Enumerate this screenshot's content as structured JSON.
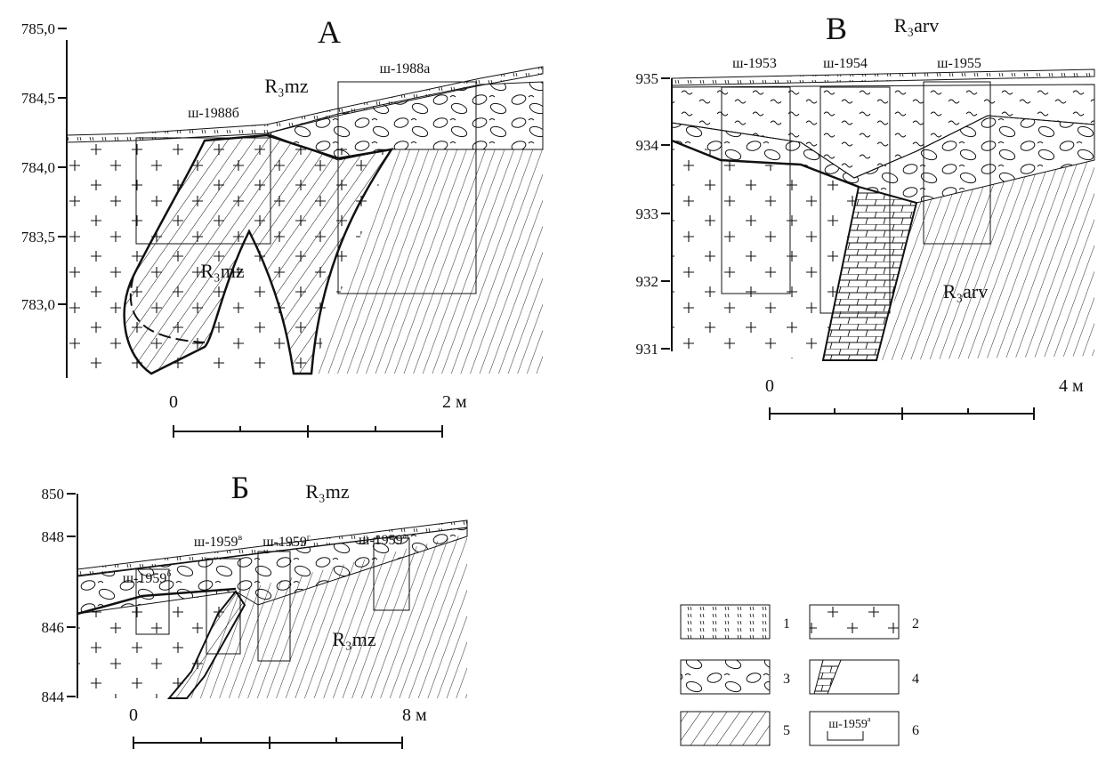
{
  "panels": [
    {
      "title": "А",
      "formations": [
        "R₃mz",
        "R₃mz"
      ],
      "shafts": [
        {
          "text": "ш-1988б"
        },
        {
          "text": "ш-1988а"
        }
      ],
      "y_axis": [
        "785,0",
        "784,5",
        "784,0",
        "783,5",
        "783,0"
      ],
      "scale": [
        "0",
        "2 м"
      ]
    },
    {
      "title": "В",
      "formations": [
        "R₃arv",
        "R₃arv"
      ],
      "shafts": [
        {
          "text": "ш-1953"
        },
        {
          "text": "ш-1954"
        },
        {
          "text": "ш-1955"
        }
      ],
      "y_axis": [
        "935",
        "934",
        "933",
        "932",
        "931"
      ],
      "scale": [
        "0",
        "4 м"
      ]
    },
    {
      "title": "Б",
      "formations": [
        "R₃mz",
        "R₃mz"
      ],
      "shafts": [
        {
          "text": "ш-1959",
          "sup": "б"
        },
        {
          "text": "ш-1959",
          "sup": "в"
        },
        {
          "text": "ш-1959",
          "sup": "г"
        },
        {
          "text": "ш-1959",
          "sup": "а"
        }
      ],
      "y_axis": [
        "850",
        "848",
        "846",
        "844"
      ],
      "scale": [
        "0",
        "8 м"
      ]
    }
  ],
  "legend": [
    {
      "number": "1"
    },
    {
      "number": "2"
    },
    {
      "number": "3"
    },
    {
      "number": "4"
    },
    {
      "number": "5"
    },
    {
      "number": "6",
      "sample": "ш-1959",
      "sample_sup": "а"
    }
  ]
}
